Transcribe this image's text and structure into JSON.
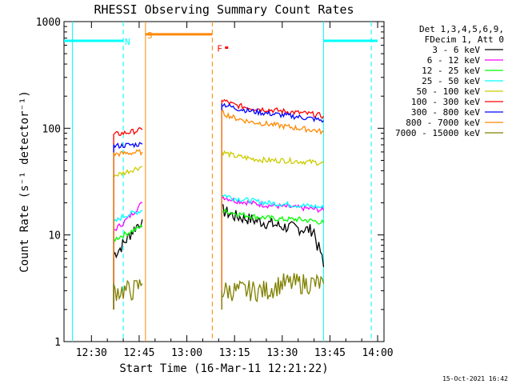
{
  "chart_data": {
    "type": "line",
    "title": "RHESSI Observing Summary Count Rates",
    "xlabel": "Start Time (16-Mar-11 12:21:22)",
    "ylabel": "Count Rate (s⁻¹ detector⁻¹)",
    "y_scale": "log",
    "ylim": [
      1,
      1000
    ],
    "xlim": [
      "12:21:22",
      "14:02"
    ],
    "x_tick_labels": [
      "12:30",
      "12:45",
      "13:00",
      "13:15",
      "13:30",
      "13:45",
      "14:00"
    ],
    "y_tick_labels": [
      "1",
      "10",
      "100",
      "1000"
    ],
    "legend": {
      "position": "right",
      "header": [
        "Det 1,3,4,5,6,9,",
        "FDecim 1, Att 0"
      ]
    },
    "series": [
      {
        "name": "3 - 6 keV",
        "color": "#000000",
        "segments": [
          {
            "x": [
              "12:37",
              "12:39",
              "12:41",
              "12:43",
              "12:45",
              "12:46"
            ],
            "y": [
              6.5,
              7.5,
              9,
              11,
              13,
              14
            ]
          },
          {
            "x": [
              "13:11",
              "13:15",
              "13:20",
              "13:25",
              "13:30",
              "13:35",
              "13:40",
              "13:41",
              "13:42",
              "13:43"
            ],
            "y": [
              17,
              15,
              14,
              13,
              12,
              11.5,
              11,
              8,
              7,
              5
            ]
          }
        ]
      },
      {
        "name": "6 - 12 keV",
        "color": "#ff00ff",
        "segments": [
          {
            "x": [
              "12:37",
              "12:40",
              "12:43",
              "12:46"
            ],
            "y": [
              11,
              13,
              16,
              20
            ]
          },
          {
            "x": [
              "13:11",
              "13:15",
              "13:20",
              "13:25",
              "13:30",
              "13:35",
              "13:40",
              "13:43"
            ],
            "y": [
              23,
              21,
              20,
              19,
              18.5,
              18,
              17.5,
              17
            ]
          }
        ]
      },
      {
        "name": "12 - 25 keV",
        "color": "#00ff00",
        "segments": [
          {
            "x": [
              "12:37",
              "12:40",
              "12:43",
              "12:46"
            ],
            "y": [
              9,
              10,
              11,
              12
            ]
          },
          {
            "x": [
              "13:11",
              "13:15",
              "13:20",
              "13:25",
              "13:30",
              "13:35",
              "13:40",
              "13:43"
            ],
            "y": [
              17,
              16,
              15,
              14.5,
              14,
              14,
              13.5,
              13
            ]
          }
        ]
      },
      {
        "name": "25 - 50 keV",
        "color": "#00ffff",
        "segments": [
          {
            "x": [
              "12:37",
              "12:40",
              "12:43",
              "12:46"
            ],
            "y": [
              13,
              15,
              16,
              17
            ]
          },
          {
            "x": [
              "13:11",
              "13:15",
              "13:20",
              "13:25",
              "13:30",
              "13:35",
              "13:40",
              "13:43"
            ],
            "y": [
              24,
              22,
              21,
              20,
              19.5,
              19,
              18.5,
              18
            ]
          }
        ]
      },
      {
        "name": "50 - 100 keV",
        "color": "#cccc00",
        "segments": [
          {
            "x": [
              "12:37",
              "12:40",
              "12:43",
              "12:46"
            ],
            "y": [
              36,
              38,
              41,
              44
            ]
          },
          {
            "x": [
              "13:11",
              "13:15",
              "13:20",
              "13:25",
              "13:30",
              "13:35",
              "13:40",
              "13:43"
            ],
            "y": [
              60,
              55,
              52,
              50,
              50,
              49,
              48,
              47
            ]
          }
        ]
      },
      {
        "name": "100 - 300 keV",
        "color": "#ff0000",
        "segments": [
          {
            "x": [
              "12:37",
              "12:40",
              "12:43",
              "12:46"
            ],
            "y": [
              87,
              90,
              93,
              97
            ]
          },
          {
            "x": [
              "13:11",
              "13:15",
              "13:20",
              "13:25",
              "13:30",
              "13:35",
              "13:40",
              "13:43"
            ],
            "y": [
              185,
              165,
              155,
              150,
              145,
              140,
              135,
              130
            ]
          }
        ]
      },
      {
        "name": "300 - 800 keV",
        "color": "#0000ff",
        "segments": [
          {
            "x": [
              "12:37",
              "12:40",
              "12:43",
              "12:46"
            ],
            "y": [
              68,
              69,
              70,
              71
            ]
          },
          {
            "x": [
              "13:11",
              "13:15",
              "13:20",
              "13:25",
              "13:30",
              "13:35",
              "13:40",
              "13:43"
            ],
            "y": [
              170,
              155,
              145,
              138,
              133,
              128,
              122,
              118
            ]
          }
        ]
      },
      {
        "name": "800 - 7000 keV",
        "color": "#ff8800",
        "segments": [
          {
            "x": [
              "12:37",
              "12:40",
              "12:43",
              "12:46"
            ],
            "y": [
              57,
              58,
              59,
              60
            ]
          },
          {
            "x": [
              "13:11",
              "13:15",
              "13:20",
              "13:25",
              "13:30",
              "13:35",
              "13:40",
              "13:43"
            ],
            "y": [
              140,
              125,
              115,
              110,
              105,
              100,
              96,
              92
            ]
          }
        ]
      },
      {
        "name": "7000 - 15000 keV",
        "color": "#808000",
        "segments": [
          {
            "x": [
              "12:37",
              "12:40",
              "12:43",
              "12:46"
            ],
            "y": [
              3,
              3,
              3,
              3.5
            ]
          },
          {
            "x": [
              "13:11",
              "13:15",
              "13:20",
              "13:25",
              "13:30",
              "13:35",
              "13:40",
              "13:43"
            ],
            "y": [
              3,
              3,
              3,
              3,
              3.5,
              3.5,
              3.5,
              3.5
            ]
          }
        ]
      }
    ],
    "annotations": {
      "markers": [
        "N",
        "S",
        "F"
      ],
      "vertical_lines": [
        {
          "x": "12:24",
          "color": "#00ffff",
          "style": "solid"
        },
        {
          "x": "12:40",
          "color": "#00ffff",
          "style": "dashed"
        },
        {
          "x": "12:47",
          "color": "#ff8800",
          "style": "solid"
        },
        {
          "x": "13:08",
          "color": "#ff8800",
          "style": "dashed"
        },
        {
          "x": "13:43",
          "color": "#00ffff",
          "style": "solid"
        },
        {
          "x": "13:58",
          "color": "#00ffff",
          "style": "dashed"
        }
      ],
      "flag_bars": [
        {
          "label": "N",
          "color": "#00ffff",
          "x": [
            "12:21:22",
            "12:40"
          ],
          "level": 660
        },
        {
          "label": "N",
          "color": "#00ffff",
          "x": [
            "13:43",
            "14:00"
          ],
          "level": 660
        },
        {
          "label": "S",
          "color": "#ff8800",
          "x": [
            "12:47",
            "13:08"
          ],
          "level": 760
        },
        {
          "label": "F",
          "color": "#ff0000",
          "x": [
            "13:12",
            "13:13"
          ],
          "level": 570
        }
      ]
    },
    "timestamp": "15-Oct-2021 16:42",
    "grid": false
  }
}
